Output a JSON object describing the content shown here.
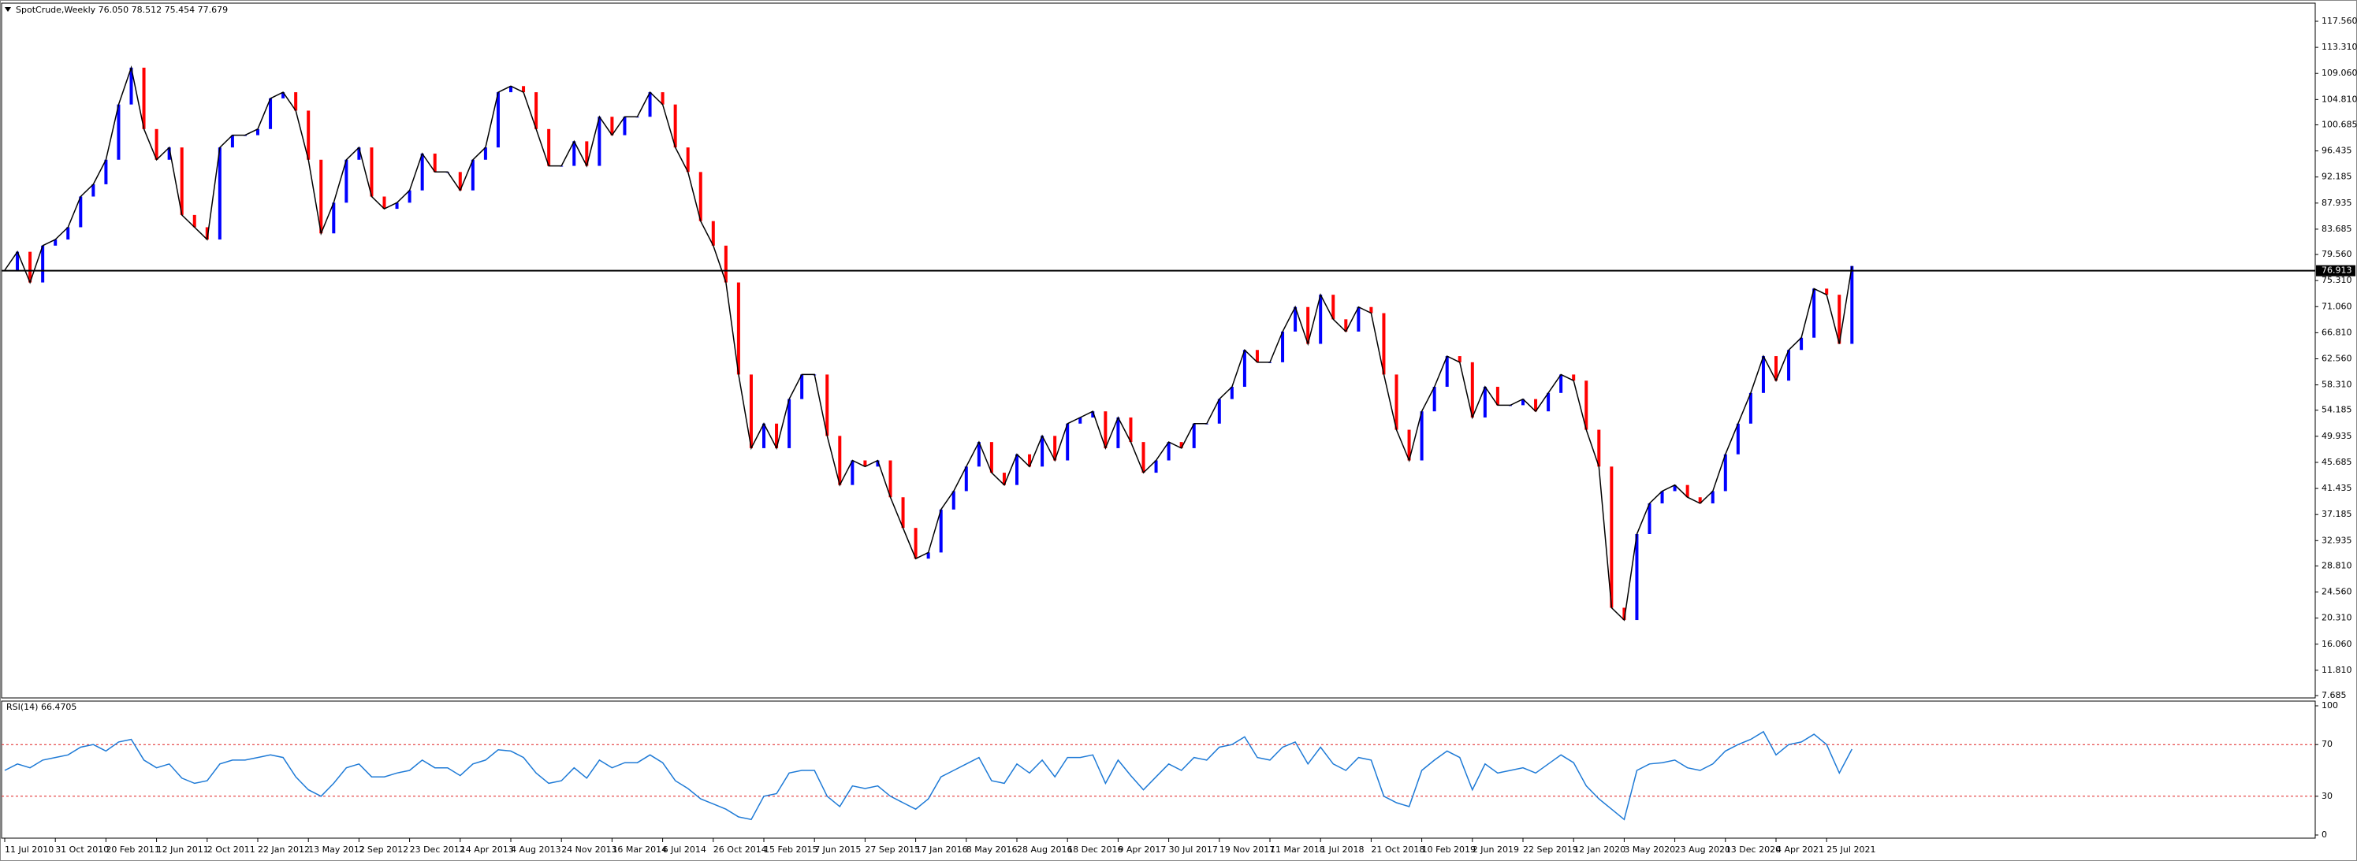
{
  "chart_data": [
    {
      "type": "bar-line",
      "title": "SpotCrude,Weekly  76.050 78.512 75.454 77.679",
      "categories": [
        "11 Jul 2010",
        null,
        null,
        null,
        "31 Oct 2010",
        null,
        null,
        null,
        "20 Feb 2011",
        null,
        null,
        null,
        "12 Jun 2011",
        null,
        null,
        null,
        "2 Oct 2011",
        null,
        null,
        null,
        "22 Jan 2012",
        null,
        null,
        null,
        "13 May 2012",
        null,
        null,
        null,
        "2 Sep 2012",
        null,
        null,
        null,
        "23 Dec 2012",
        null,
        null,
        null,
        "14 Apr 2013",
        null,
        null,
        null,
        "4 Aug 2013",
        null,
        null,
        null,
        "24 Nov 2013",
        null,
        null,
        null,
        "16 Mar 2014",
        null,
        null,
        null,
        "6 Jul 2014",
        null,
        null,
        null,
        "26 Oct 2014",
        null,
        null,
        null,
        "15 Feb 2015",
        null,
        null,
        null,
        "7 Jun 2015",
        null,
        null,
        null,
        "27 Sep 2015",
        null,
        null,
        null,
        "17 Jan 2016",
        null,
        null,
        null,
        "8 May 2016",
        null,
        null,
        null,
        "28 Aug 2016",
        null,
        null,
        null,
        "18 Dec 2016",
        null,
        null,
        null,
        "9 Apr 2017",
        null,
        null,
        null,
        "30 Jul 2017",
        null,
        null,
        null,
        "19 Nov 2017",
        null,
        null,
        null,
        "11 Mar 2018",
        null,
        null,
        null,
        "1 Jul 2018",
        null,
        null,
        null,
        "21 Oct 2018",
        null,
        null,
        null,
        "10 Feb 2019",
        null,
        null,
        null,
        "2 Jun 2019",
        null,
        null,
        null,
        "22 Sep 2019",
        null,
        null,
        null,
        "12 Jan 2020",
        null,
        null,
        null,
        "3 May 2020",
        null,
        null,
        null,
        "23 Aug 2020",
        null,
        null,
        null,
        "13 Dec 2020",
        null,
        null,
        null,
        "4 Apr 2021",
        null,
        null,
        null,
        "25 Jul 2021",
        null,
        null
      ],
      "values": [
        77,
        80,
        75,
        81,
        82,
        84,
        89,
        91,
        95,
        104,
        110,
        100,
        95,
        97,
        86,
        84,
        82,
        97,
        99,
        99,
        100,
        105,
        106,
        103,
        95,
        83,
        88,
        95,
        97,
        89,
        87,
        88,
        90,
        96,
        93,
        93,
        90,
        95,
        97,
        106,
        107,
        106,
        100,
        94,
        94,
        98,
        94,
        102,
        99,
        102,
        102,
        106,
        104,
        97,
        93,
        85,
        81,
        75,
        60,
        48,
        52,
        48,
        56,
        60,
        60,
        50,
        42,
        46,
        45,
        46,
        40,
        35,
        30,
        31,
        38,
        41,
        45,
        49,
        44,
        42,
        47,
        45,
        50,
        46,
        52,
        53,
        54,
        48,
        53,
        49,
        44,
        46,
        49,
        48,
        52,
        52,
        56,
        58,
        64,
        62,
        62,
        67,
        71,
        65,
        73,
        69,
        67,
        71,
        70,
        60,
        51,
        46,
        54,
        58,
        63,
        62,
        53,
        58,
        55,
        55,
        56,
        54,
        57,
        60,
        59,
        51,
        45,
        22,
        20,
        34,
        39,
        41,
        42,
        40,
        39,
        41,
        47,
        52,
        57,
        63,
        59,
        64,
        66,
        74,
        73,
        65,
        77.68
      ],
      "up_color": "#0000ff",
      "down_color": "#ff0000",
      "line_color": "#000000",
      "ylim": [
        7.3,
        120.0
      ],
      "yticks": [
        {
          "value": 117.56,
          "label": "117.560"
        },
        {
          "value": 113.31,
          "label": "113.310"
        },
        {
          "value": 109.06,
          "label": "109.060"
        },
        {
          "value": 104.81,
          "label": "104.810"
        },
        100.685,
        96.435,
        92.185,
        87.935,
        83.685,
        {
          "value": 79.56,
          "label": "79.560"
        },
        {
          "value": 75.31,
          "label": "75.310"
        },
        {
          "value": 71.06,
          "label": "71.060"
        },
        {
          "value": 66.81,
          "label": "66.810"
        },
        {
          "value": 62.56,
          "label": "62.560"
        },
        {
          "value": 58.31,
          "label": "58.310"
        },
        54.185,
        49.935,
        45.685,
        41.435,
        37.185,
        32.935,
        {
          "value": 28.81,
          "label": "28.810"
        },
        {
          "value": 24.56,
          "label": "24.560"
        },
        {
          "value": 20.31,
          "label": "20.310"
        },
        {
          "value": 16.06,
          "label": "16.060"
        },
        {
          "value": 11.81,
          "label": "11.810"
        },
        7.685
      ],
      "hline": 76.913,
      "hline_color": "#000000"
    },
    {
      "type": "line",
      "title": "RSI(14) 66.4705",
      "values": [
        50,
        55,
        52,
        58,
        60,
        62,
        68,
        70,
        65,
        72,
        74,
        58,
        52,
        55,
        44,
        40,
        42,
        55,
        58,
        58,
        60,
        62,
        60,
        45,
        35,
        30,
        40,
        52,
        55,
        45,
        45,
        48,
        50,
        58,
        52,
        52,
        46,
        55,
        58,
        66,
        65,
        60,
        48,
        40,
        42,
        52,
        44,
        58,
        52,
        56,
        56,
        62,
        56,
        42,
        36,
        28,
        24,
        20,
        14,
        12,
        30,
        32,
        48,
        50,
        50,
        30,
        22,
        38,
        36,
        38,
        30,
        25,
        20,
        28,
        45,
        50,
        55,
        60,
        42,
        40,
        55,
        48,
        58,
        45,
        60,
        60,
        62,
        40,
        58,
        46,
        35,
        45,
        55,
        50,
        60,
        58,
        68,
        70,
        76,
        60,
        58,
        68,
        72,
        55,
        68,
        55,
        50,
        60,
        58,
        30,
        25,
        22,
        50,
        58,
        65,
        60,
        35,
        55,
        48,
        50,
        52,
        48,
        55,
        62,
        56,
        38,
        28,
        20,
        12,
        50,
        55,
        56,
        58,
        52,
        50,
        55,
        65,
        70,
        74,
        80,
        62,
        70,
        72,
        78,
        70,
        48,
        66.47
      ],
      "color": "#1e7ad6",
      "ylim": [
        0,
        100
      ],
      "yticks": [
        100,
        70,
        30,
        0
      ],
      "levels": [
        70,
        30
      ],
      "level_color": "#e02020"
    }
  ]
}
